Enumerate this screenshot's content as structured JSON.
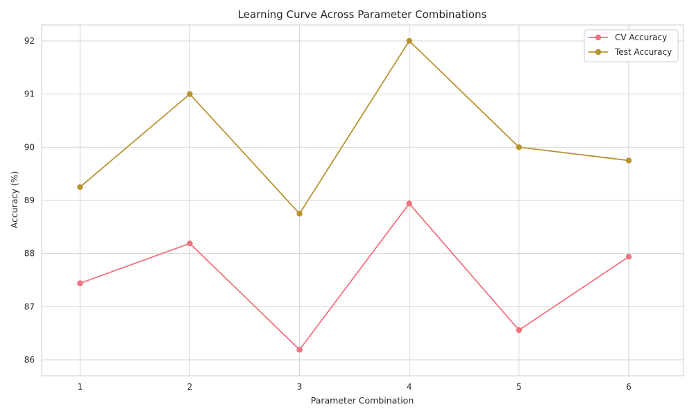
{
  "chart_data": {
    "type": "line",
    "title": "Learning Curve Across Parameter Combinations",
    "xlabel": "Parameter Combination",
    "ylabel": "Accuracy (%)",
    "x": [
      1,
      2,
      3,
      4,
      5,
      6
    ],
    "xticks": [
      "1",
      "2",
      "3",
      "4",
      "5",
      "6"
    ],
    "yticks": [
      "86",
      "87",
      "88",
      "89",
      "90",
      "91",
      "92"
    ],
    "xlim": [
      0.65,
      6.5
    ],
    "ylim": [
      85.7,
      92.3
    ],
    "grid": true,
    "legend_position": "top-right",
    "series": [
      {
        "name": "CV Accuracy",
        "color": "#f0727f",
        "marker": "circle",
        "values": [
          87.44,
          88.19,
          86.19,
          88.94,
          86.56,
          87.94
        ]
      },
      {
        "name": "Test Accuracy",
        "color": "#b8922f",
        "marker": "circle",
        "values": [
          89.25,
          91.0,
          88.75,
          92.0,
          90.0,
          89.75
        ]
      }
    ]
  }
}
